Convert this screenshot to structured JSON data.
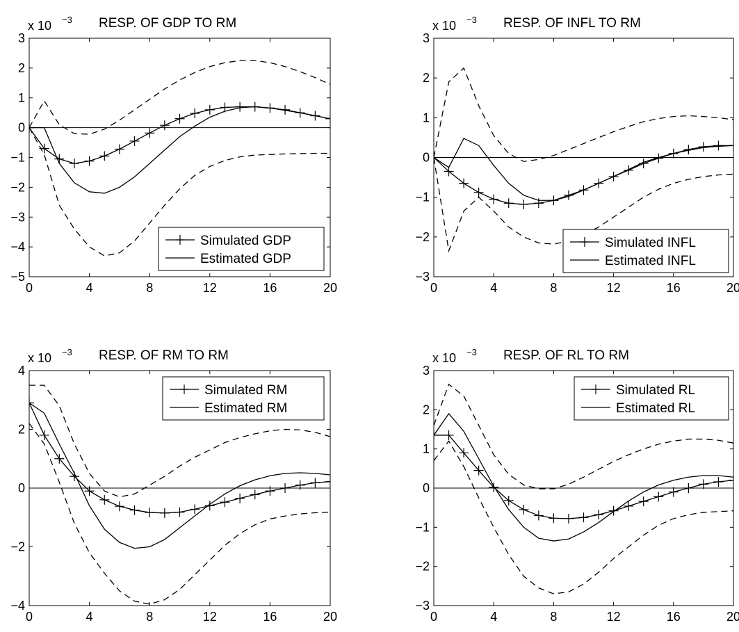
{
  "chart_data": [
    {
      "type": "line",
      "title": "RESP. OF GDP TO RM",
      "scale_label": "x 10",
      "scale_exponent": "−3",
      "xlim": [
        0,
        20
      ],
      "ylim": [
        -5,
        3
      ],
      "xticks": [
        0,
        4,
        8,
        12,
        16,
        20
      ],
      "yticks": [
        -5,
        -4,
        -3,
        -2,
        -1,
        0,
        1,
        2,
        3
      ],
      "legend_position": "bottom-right",
      "x": [
        0,
        1,
        2,
        3,
        4,
        5,
        6,
        7,
        8,
        9,
        10,
        11,
        12,
        13,
        14,
        15,
        16,
        17,
        18,
        19,
        20
      ],
      "series": [
        {
          "name": "Simulated GDP",
          "style": "line-plus",
          "values": [
            0,
            -0.7,
            -1.05,
            -1.2,
            -1.12,
            -0.95,
            -0.72,
            -0.45,
            -0.18,
            0.08,
            0.3,
            0.48,
            0.6,
            0.68,
            0.7,
            0.7,
            0.66,
            0.6,
            0.5,
            0.4,
            0.3
          ]
        },
        {
          "name": "Estimated GDP",
          "style": "solid",
          "values": [
            0,
            0,
            -1.2,
            -1.85,
            -2.15,
            -2.2,
            -2.0,
            -1.65,
            -1.2,
            -0.75,
            -0.3,
            0.05,
            0.35,
            0.55,
            0.67,
            0.7,
            0.66,
            0.58,
            0.5,
            0.4,
            0.3
          ]
        },
        {
          "name": "",
          "style": "dashed",
          "values": [
            0,
            0.9,
            0.1,
            -0.2,
            -0.22,
            -0.05,
            0.25,
            0.6,
            0.95,
            1.3,
            1.6,
            1.85,
            2.05,
            2.18,
            2.25,
            2.25,
            2.18,
            2.05,
            1.88,
            1.68,
            1.45
          ]
        },
        {
          "name": "",
          "style": "dashed",
          "values": [
            0,
            -0.9,
            -2.6,
            -3.4,
            -4.0,
            -4.3,
            -4.2,
            -3.8,
            -3.2,
            -2.6,
            -2.05,
            -1.6,
            -1.3,
            -1.1,
            -0.98,
            -0.92,
            -0.9,
            -0.88,
            -0.87,
            -0.86,
            -0.86
          ]
        }
      ]
    },
    {
      "type": "line",
      "title": "RESP. OF INFL TO RM",
      "scale_label": "x 10",
      "scale_exponent": "−3",
      "xlim": [
        0,
        20
      ],
      "ylim": [
        -3,
        3
      ],
      "xticks": [
        0,
        4,
        8,
        12,
        16,
        20
      ],
      "yticks": [
        -3,
        -2,
        -1,
        0,
        1,
        2,
        3
      ],
      "legend_position": "bottom-right",
      "x": [
        0,
        1,
        2,
        3,
        4,
        5,
        6,
        7,
        8,
        9,
        10,
        11,
        12,
        13,
        14,
        15,
        16,
        17,
        18,
        19,
        20
      ],
      "series": [
        {
          "name": "Simulated INFL",
          "style": "line-plus",
          "values": [
            0,
            -0.35,
            -0.65,
            -0.88,
            -1.05,
            -1.15,
            -1.18,
            -1.15,
            -1.08,
            -0.95,
            -0.82,
            -0.65,
            -0.48,
            -0.32,
            -0.15,
            -0.02,
            0.1,
            0.2,
            0.27,
            0.3,
            0.3
          ]
        },
        {
          "name": "Estimated INFL",
          "style": "solid",
          "values": [
            0,
            -0.25,
            0.48,
            0.3,
            -0.2,
            -0.65,
            -0.95,
            -1.08,
            -1.08,
            -0.98,
            -0.82,
            -0.65,
            -0.48,
            -0.3,
            -0.12,
            0.0,
            0.1,
            0.18,
            0.25,
            0.28,
            0.3
          ]
        },
        {
          "name": "",
          "style": "dashed",
          "values": [
            0,
            1.9,
            2.25,
            1.3,
            0.55,
            0.1,
            -0.1,
            -0.05,
            0.05,
            0.2,
            0.35,
            0.5,
            0.65,
            0.78,
            0.9,
            0.98,
            1.03,
            1.05,
            1.03,
            1.0,
            0.95
          ]
        },
        {
          "name": "",
          "style": "dashed",
          "values": [
            0,
            -2.35,
            -1.35,
            -1.0,
            -1.35,
            -1.75,
            -2.0,
            -2.15,
            -2.18,
            -2.1,
            -1.95,
            -1.75,
            -1.5,
            -1.25,
            -1.0,
            -0.8,
            -0.65,
            -0.55,
            -0.48,
            -0.44,
            -0.42
          ]
        }
      ]
    },
    {
      "type": "line",
      "title": "RESP. OF RM TO RM",
      "scale_label": "x 10",
      "scale_exponent": "−3",
      "xlim": [
        0,
        20
      ],
      "ylim": [
        -4,
        4
      ],
      "xticks": [
        0,
        4,
        8,
        12,
        16,
        20
      ],
      "yticks": [
        -4,
        -2,
        0,
        2,
        4
      ],
      "legend_position": "top-right",
      "x": [
        0,
        1,
        2,
        3,
        4,
        5,
        6,
        7,
        8,
        9,
        10,
        11,
        12,
        13,
        14,
        15,
        16,
        17,
        18,
        19,
        20
      ],
      "series": [
        {
          "name": "Simulated RM",
          "style": "line-plus",
          "values": [
            2.9,
            1.8,
            1.0,
            0.4,
            -0.1,
            -0.4,
            -0.62,
            -0.75,
            -0.83,
            -0.85,
            -0.82,
            -0.72,
            -0.6,
            -0.48,
            -0.35,
            -0.22,
            -0.1,
            0.0,
            0.1,
            0.18,
            0.22
          ]
        },
        {
          "name": "Estimated RM",
          "style": "solid",
          "values": [
            2.9,
            2.55,
            1.5,
            0.5,
            -0.6,
            -1.4,
            -1.85,
            -2.05,
            -2.0,
            -1.75,
            -1.35,
            -0.95,
            -0.55,
            -0.2,
            0.08,
            0.28,
            0.42,
            0.5,
            0.52,
            0.5,
            0.45
          ]
        },
        {
          "name": "",
          "style": "dashed",
          "values": [
            3.5,
            3.5,
            2.8,
            1.5,
            0.5,
            -0.1,
            -0.3,
            -0.2,
            0.1,
            0.4,
            0.75,
            1.05,
            1.3,
            1.55,
            1.72,
            1.85,
            1.95,
            2.0,
            1.98,
            1.9,
            1.75
          ]
        },
        {
          "name": "",
          "style": "dashed",
          "values": [
            2.2,
            1.5,
            0.2,
            -1.2,
            -2.2,
            -2.9,
            -3.5,
            -3.85,
            -3.95,
            -3.8,
            -3.45,
            -2.95,
            -2.45,
            -1.95,
            -1.55,
            -1.25,
            -1.05,
            -0.95,
            -0.88,
            -0.84,
            -0.82
          ]
        }
      ]
    },
    {
      "type": "line",
      "title": "RESP. OF RL TO RM",
      "scale_label": "x 10",
      "scale_exponent": "−3",
      "xlim": [
        0,
        20
      ],
      "ylim": [
        -3,
        3
      ],
      "xticks": [
        0,
        4,
        8,
        12,
        16,
        20
      ],
      "yticks": [
        -3,
        -2,
        -1,
        0,
        1,
        2,
        3
      ],
      "legend_position": "top-right",
      "x": [
        0,
        1,
        2,
        3,
        4,
        5,
        6,
        7,
        8,
        9,
        10,
        11,
        12,
        13,
        14,
        15,
        16,
        17,
        18,
        19,
        20
      ],
      "series": [
        {
          "name": "Simulated RL",
          "style": "line-plus",
          "values": [
            1.35,
            1.35,
            0.9,
            0.45,
            0.02,
            -0.32,
            -0.55,
            -0.7,
            -0.77,
            -0.78,
            -0.75,
            -0.68,
            -0.58,
            -0.46,
            -0.34,
            -0.22,
            -0.1,
            0.0,
            0.1,
            0.16,
            0.2
          ]
        },
        {
          "name": "Estimated RL",
          "style": "solid",
          "values": [
            1.35,
            1.9,
            1.45,
            0.75,
            0.05,
            -0.55,
            -1.0,
            -1.28,
            -1.35,
            -1.3,
            -1.12,
            -0.88,
            -0.6,
            -0.33,
            -0.1,
            0.08,
            0.2,
            0.28,
            0.32,
            0.32,
            0.28
          ]
        },
        {
          "name": "",
          "style": "dashed",
          "values": [
            1.6,
            2.65,
            2.35,
            1.6,
            0.85,
            0.35,
            0.08,
            -0.02,
            -0.02,
            0.1,
            0.28,
            0.48,
            0.68,
            0.85,
            1.0,
            1.12,
            1.2,
            1.25,
            1.25,
            1.22,
            1.15
          ]
        },
        {
          "name": "",
          "style": "dashed",
          "values": [
            0.7,
            1.2,
            0.55,
            -0.25,
            -1.0,
            -1.7,
            -2.25,
            -2.55,
            -2.7,
            -2.65,
            -2.45,
            -2.15,
            -1.8,
            -1.5,
            -1.2,
            -0.95,
            -0.78,
            -0.68,
            -0.62,
            -0.6,
            -0.58
          ]
        }
      ]
    }
  ]
}
